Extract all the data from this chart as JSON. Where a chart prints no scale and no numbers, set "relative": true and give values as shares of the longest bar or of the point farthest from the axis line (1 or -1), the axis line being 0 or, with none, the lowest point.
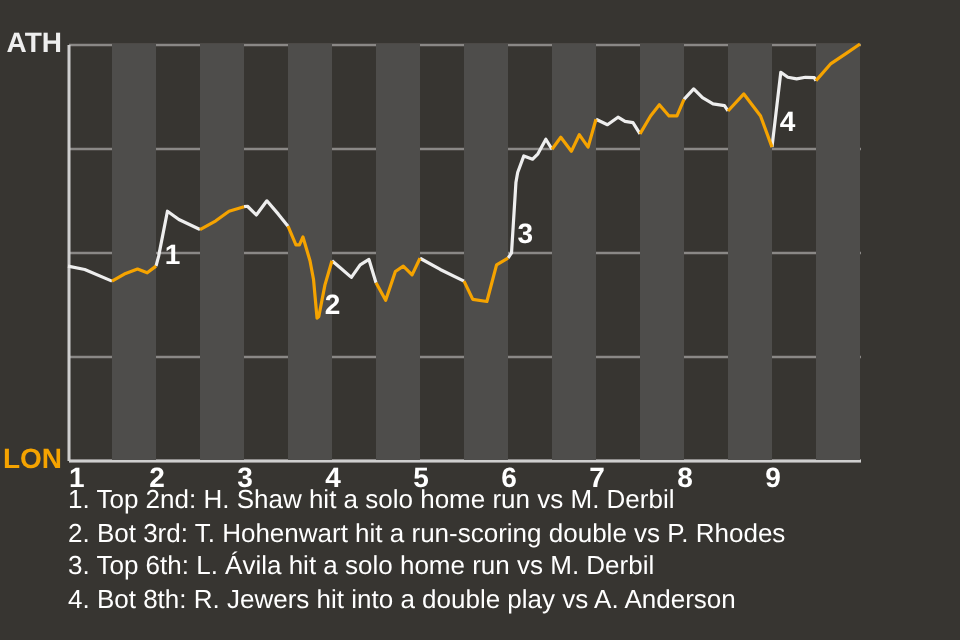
{
  "chart_data": {
    "type": "line",
    "relative": true,
    "xlim": [
      1,
      10
    ],
    "xticks": [
      1,
      2,
      3,
      4,
      5,
      6,
      7,
      8,
      9
    ],
    "grid": "y",
    "line_style": "solid",
    "marker": "none",
    "bands": [
      {
        "axis": "x",
        "from": 1.5,
        "to": 2,
        "label": null,
        "color": "#4e4d4b"
      },
      {
        "axis": "x",
        "from": 2.5,
        "to": 3,
        "label": null,
        "color": "#4e4d4b"
      },
      {
        "axis": "x",
        "from": 3.5,
        "to": 4,
        "label": null,
        "color": "#4e4d4b"
      },
      {
        "axis": "x",
        "from": 4.5,
        "to": 5,
        "label": null,
        "color": "#4e4d4b"
      },
      {
        "axis": "x",
        "from": 5.5,
        "to": 6,
        "label": null,
        "color": "#4e4d4b"
      },
      {
        "axis": "x",
        "from": 6.5,
        "to": 7,
        "label": null,
        "color": "#4e4d4b"
      },
      {
        "axis": "x",
        "from": 7.5,
        "to": 8,
        "label": null,
        "color": "#4e4d4b"
      },
      {
        "axis": "x",
        "from": 8.5,
        "to": 9,
        "label": null,
        "color": "#4e4d4b"
      },
      {
        "axis": "x",
        "from": 9.5,
        "to": 10,
        "label": null,
        "color": "#4e4d4b"
      }
    ],
    "series": [
      {
        "color": "#eeeeee",
        "x": [
          1,
          1.19,
          1.5,
          null,
          2,
          2.03,
          2.13,
          2.26,
          2.5,
          null,
          3,
          3.04,
          3.14,
          3.26,
          3.39,
          3.5,
          null,
          4,
          4.1,
          4.22,
          4.32,
          4.42,
          4.5,
          null,
          5,
          5.23,
          5.5,
          null,
          6,
          6.04,
          6.09,
          6.11,
          6.18,
          6.28,
          6.34,
          6.43,
          6.5,
          null,
          7,
          7.13,
          7.25,
          7.33,
          7.42,
          7.5,
          null,
          8,
          8.11,
          8.21,
          8.33,
          8.46,
          8.5,
          null,
          9,
          9.1,
          9.18,
          9.28,
          9.38,
          9.48,
          9.5
        ],
        "values": [
          0.466,
          0.458,
          0.43,
          null,
          0.466,
          0.49,
          0.598,
          0.578,
          0.554,
          null,
          0.609,
          0.61,
          0.589,
          0.623,
          0.591,
          0.562,
          null,
          0.479,
          0.461,
          0.439,
          0.469,
          0.482,
          0.426,
          null,
          0.485,
          0.458,
          0.43,
          null,
          0.485,
          0.498,
          0.667,
          0.691,
          0.731,
          0.723,
          0.736,
          0.771,
          0.747,
          null,
          0.819,
          0.806,
          0.824,
          0.814,
          0.811,
          0.784,
          null,
          0.867,
          0.892,
          0.871,
          0.856,
          0.852,
          0.839,
          null,
          0.752,
          0.932,
          0.92,
          0.916,
          0.92,
          0.919,
          0.912
        ]
      },
      {
        "color": "#f5a300",
        "x": [
          1.5,
          1.64,
          1.79,
          1.9,
          2,
          null,
          2.5,
          2.68,
          2.83,
          3,
          null,
          3.5,
          3.59,
          3.63,
          3.67,
          3.75,
          3.79,
          3.83,
          3.85,
          3.92,
          4,
          null,
          4.5,
          4.61,
          4.72,
          4.81,
          4.91,
          5,
          null,
          5.5,
          5.6,
          5.76,
          5.87,
          6,
          null,
          6.5,
          6.6,
          6.72,
          6.81,
          6.91,
          7,
          null,
          7.5,
          7.62,
          7.72,
          7.83,
          7.92,
          8,
          null,
          8.5,
          8.68,
          8.87,
          9,
          null,
          9.5,
          9.67,
          9.84,
          10
        ],
        "values": [
          0.43,
          0.447,
          0.459,
          0.45,
          0.466,
          null,
          0.554,
          0.575,
          0.598,
          0.609,
          null,
          0.562,
          0.517,
          0.517,
          0.536,
          0.479,
          0.434,
          0.341,
          0.345,
          0.421,
          0.479,
          null,
          0.426,
          0.384,
          0.453,
          0.466,
          0.445,
          0.485,
          null,
          0.43,
          0.386,
          0.381,
          0.469,
          0.485,
          null,
          0.747,
          0.776,
          0.742,
          0.782,
          0.752,
          0.819,
          null,
          0.784,
          0.827,
          0.854,
          0.827,
          0.827,
          0.867,
          null,
          0.839,
          0.88,
          0.827,
          0.752,
          null,
          0.912,
          0.953,
          0.977,
          1
        ]
      }
    ],
    "annotations": [
      "ATH",
      "LON",
      {
        "text": "1",
        "x": 2.03,
        "y": 0.49
      },
      {
        "text": "2",
        "x": 3.85,
        "y": 0.37
      },
      {
        "text": "3",
        "x": 6.04,
        "y": 0.54
      },
      {
        "text": "4",
        "x": 9.02,
        "y": 0.81
      },
      "1. Top 2nd: H. Shaw hit a solo home run vs M. Derbil",
      "2. Bot 3rd: T. Hohenwart hit a run-scoring double vs P. Rhodes",
      "3. Top 6th: L. Ávila hit a solo home run vs M. Derbil",
      "4. Bot 8th: R. Jewers hit into a double play vs A. Anderson"
    ]
  }
}
